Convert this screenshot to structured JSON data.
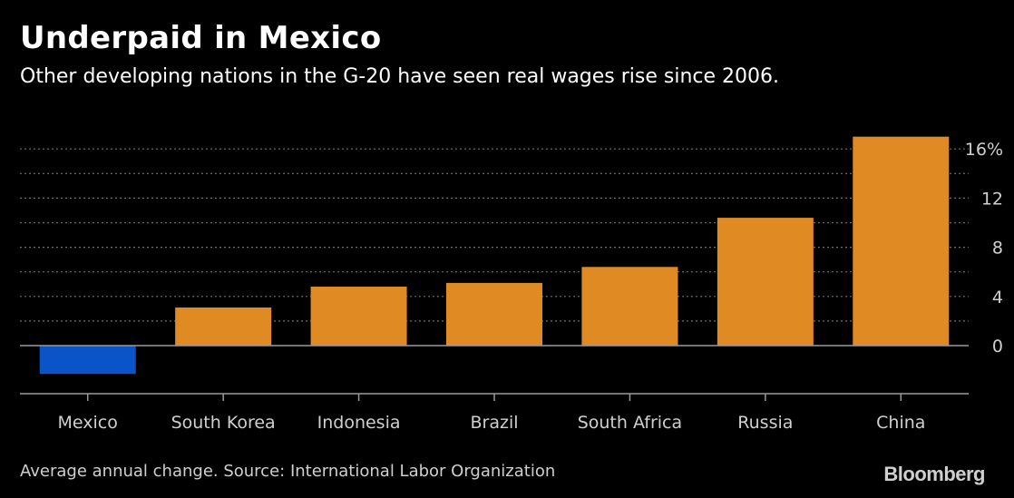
{
  "header": {
    "title": "Underpaid in Mexico",
    "subtitle": "Other developing nations in the G-20 have seen real wages rise since 2006."
  },
  "footer": {
    "note": "Average annual change. Source: International Labor Organization",
    "brand": "Bloomberg"
  },
  "colors": {
    "background": "#000000",
    "positive_bar": "#e08a24",
    "negative_bar": "#0b54c8",
    "grid": "#6e6e6e",
    "axis": "#9a9a9a",
    "text": "#ffffff",
    "muted_text": "#cfcfcf"
  },
  "chart_data": {
    "type": "bar",
    "title": "Underpaid in Mexico",
    "subtitle": "Other developing nations in the G-20 have seen real wages rise since 2006.",
    "categories": [
      "Mexico",
      "South Korea",
      "Indonesia",
      "Brazil",
      "South Africa",
      "Russia",
      "China"
    ],
    "values": [
      -2.3,
      3.1,
      4.8,
      5.1,
      6.4,
      10.4,
      17.0
    ],
    "ylim": [
      -4,
      18
    ],
    "yticks": [
      0,
      4,
      8,
      12,
      16
    ],
    "ytick_labels": [
      "0",
      "4",
      "8",
      "12",
      "16%"
    ],
    "xlabel": "",
    "ylabel": "",
    "grid": true,
    "legend": "none",
    "note": "Average annual change. Source: International Labor Organization"
  }
}
